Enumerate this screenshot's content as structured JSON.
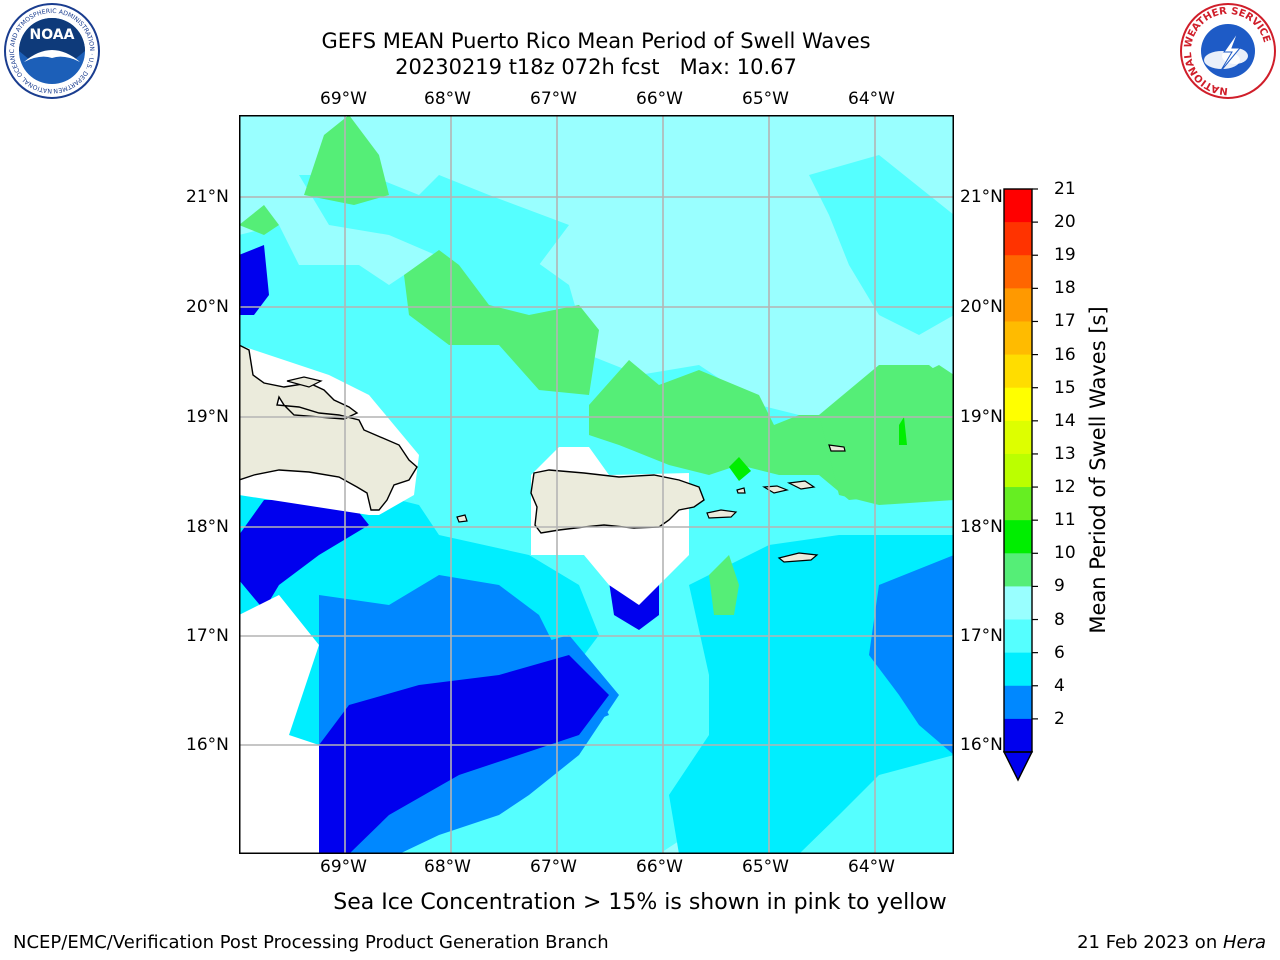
{
  "title": {
    "line1": "GEFS MEAN Puerto Rico Mean Period of Swell Waves",
    "line2": "20230219 t18z 072h fcst   Max: 10.67"
  },
  "map": {
    "lon_labels": [
      "69°W",
      "68°W",
      "67°W",
      "66°W",
      "65°W",
      "64°W"
    ],
    "lat_labels": [
      "21°N",
      "20°N",
      "19°N",
      "18°N",
      "17°N",
      "16°N"
    ]
  },
  "colorbar": {
    "label": "Mean Period of Swell Waves [s]",
    "ticks": [
      "21",
      "20",
      "19",
      "18",
      "17",
      "16",
      "15",
      "14",
      "13",
      "12",
      "11",
      "10",
      "9",
      "8",
      "6",
      "4",
      "2"
    ],
    "colors": [
      "#ff0000",
      "#ff3300",
      "#ff6600",
      "#ff9900",
      "#ffbb00",
      "#ffdd00",
      "#ffff00",
      "#ddff00",
      "#bbff00",
      "#66ee22",
      "#00ee00",
      "#55ee77",
      "#99ffff",
      "#55ffff",
      "#00eeff",
      "#0088ff",
      "#0000ee"
    ]
  },
  "caption": "Sea Ice Concentration > 15% is shown in pink to yellow",
  "footer": {
    "left": "NCEP/EMC/Verification Post Processing Product Generation Branch",
    "right_date": "21 Feb 2023 on ",
    "right_host": "Hera"
  },
  "logos": {
    "noaa": {
      "text": "NOAA",
      "ring_text": "NATIONAL OCEANIC AND ATMOSPHERIC ADMINISTRATION · U.S. DEPARTMENT OF COMMERCE"
    },
    "nws": {
      "ring_text": "NATIONAL WEATHER SERVICE"
    }
  }
}
